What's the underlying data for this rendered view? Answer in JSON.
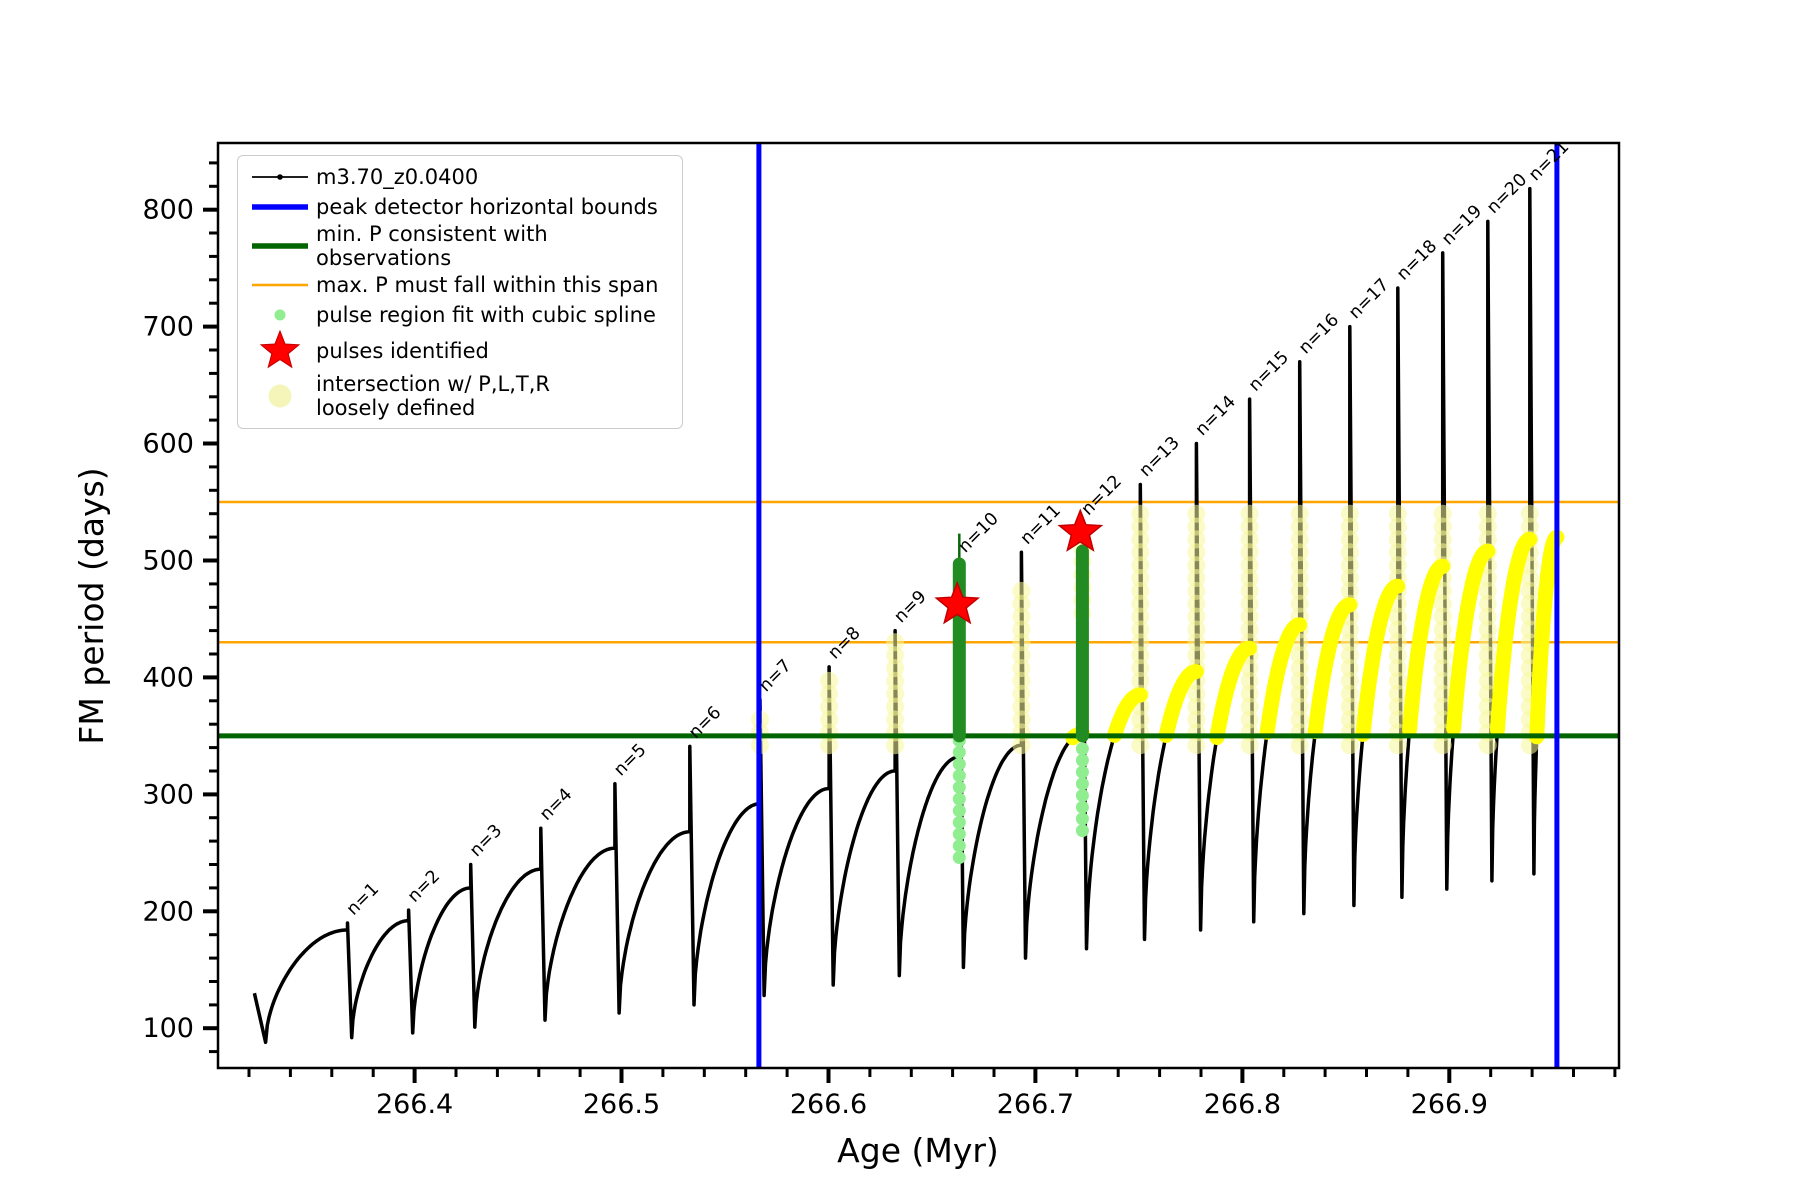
{
  "chart_data": {
    "type": "line",
    "title": "",
    "xlabel": "Age (Myr)",
    "ylabel": "FM period (days)",
    "xlim": [
      266.305,
      266.982
    ],
    "ylim": [
      66,
      857
    ],
    "x_major_ticks": [
      266.4,
      266.5,
      266.6,
      266.7,
      266.8,
      266.9
    ],
    "x_minor_step": 0.02,
    "y_major_ticks": [
      100,
      200,
      300,
      400,
      500,
      600,
      700,
      800
    ],
    "y_minor_step": 20,
    "grid": false,
    "series_label": "m3.70_z0.0400",
    "data_start": {
      "x": 266.3226,
      "v": 130
    },
    "x_first_start": 266.328,
    "cycles": [
      {
        "n": 1,
        "label": "n=1",
        "x_peak": 266.3676,
        "v_min": 88,
        "v_arc": 184,
        "v_peak": 190,
        "yellow_arc": false
      },
      {
        "n": 2,
        "label": "n=2",
        "x_peak": 266.3971,
        "v_min": 92,
        "v_arc": 192,
        "v_peak": 201,
        "yellow_arc": false
      },
      {
        "n": 3,
        "label": "n=3",
        "x_peak": 266.4271,
        "v_min": 96,
        "v_arc": 220,
        "v_peak": 240,
        "yellow_arc": false
      },
      {
        "n": 4,
        "label": "n=4",
        "x_peak": 266.461,
        "v_min": 101,
        "v_arc": 236,
        "v_peak": 271,
        "yellow_arc": false
      },
      {
        "n": 5,
        "label": "n=5",
        "x_peak": 266.4968,
        "v_min": 107,
        "v_arc": 254,
        "v_peak": 309,
        "yellow_arc": false
      },
      {
        "n": 6,
        "label": "n=6",
        "x_peak": 266.533,
        "v_min": 113,
        "v_arc": 268,
        "v_peak": 341,
        "yellow_arc": false
      },
      {
        "n": 7,
        "label": "n=7",
        "x_peak": 266.5669,
        "v_min": 120,
        "v_arc": 292,
        "v_peak": 381,
        "yellow_arc": false
      },
      {
        "n": 8,
        "label": "n=8",
        "x_peak": 266.6003,
        "v_min": 128,
        "v_arc": 305,
        "v_peak": 409,
        "yellow_arc": false
      },
      {
        "n": 9,
        "label": "n=9",
        "x_peak": 266.6322,
        "v_min": 137,
        "v_arc": 320,
        "v_peak": 440,
        "yellow_arc": false
      },
      {
        "n": 10,
        "label": "n=10",
        "x_peak": 266.6632,
        "v_min": 145,
        "v_arc": 332,
        "v_peak": 500,
        "yellow_arc": false
      },
      {
        "n": 11,
        "label": "n=11",
        "x_peak": 266.6932,
        "v_min": 152,
        "v_arc": 342,
        "v_peak": 507,
        "yellow_arc": false
      },
      {
        "n": 12,
        "label": "n=12",
        "x_peak": 266.7227,
        "v_min": 160,
        "v_arc": 352,
        "v_peak": 532,
        "yellow_arc": true
      },
      {
        "n": 13,
        "label": "n=13",
        "x_peak": 266.7507,
        "v_min": 168,
        "v_arc": 385,
        "v_peak": 565,
        "yellow_arc": true
      },
      {
        "n": 14,
        "label": "n=14",
        "x_peak": 266.7778,
        "v_min": 176,
        "v_arc": 405,
        "v_peak": 600,
        "yellow_arc": true
      },
      {
        "n": 15,
        "label": "n=15",
        "x_peak": 266.8035,
        "v_min": 184,
        "v_arc": 425,
        "v_peak": 638,
        "yellow_arc": true
      },
      {
        "n": 16,
        "label": "n=16",
        "x_peak": 266.8277,
        "v_min": 191,
        "v_arc": 445,
        "v_peak": 670,
        "yellow_arc": true
      },
      {
        "n": 17,
        "label": "n=17",
        "x_peak": 266.8519,
        "v_min": 198,
        "v_arc": 462,
        "v_peak": 700,
        "yellow_arc": true
      },
      {
        "n": 18,
        "label": "n=18",
        "x_peak": 266.8751,
        "v_min": 205,
        "v_arc": 478,
        "v_peak": 733,
        "yellow_arc": true
      },
      {
        "n": 19,
        "label": "n=19",
        "x_peak": 266.8968,
        "v_min": 212,
        "v_arc": 495,
        "v_peak": 763,
        "yellow_arc": true
      },
      {
        "n": 20,
        "label": "n=20",
        "x_peak": 266.9186,
        "v_min": 219,
        "v_arc": 508,
        "v_peak": 790,
        "yellow_arc": true
      },
      {
        "n": 21,
        "label": "n=21",
        "x_peak": 266.9389,
        "v_min": 226,
        "v_arc": 518,
        "v_peak": 818,
        "yellow_arc": true
      }
    ],
    "partial_cycle": {
      "x_end": 266.952,
      "v_min": 232,
      "v_arc": 520,
      "yellow_arc": true
    },
    "blue_vlines": [
      266.5664,
      266.952
    ],
    "green_hline": 350,
    "orange_hlines": [
      430,
      550
    ],
    "yellow_columns": [
      {
        "x": 266.5669,
        "v1": 342,
        "v2": 374
      },
      {
        "x": 266.6003,
        "v1": 342,
        "v2": 405
      },
      {
        "x": 266.6322,
        "v1": 342,
        "v2": 436
      },
      {
        "x": 266.6932,
        "v1": 342,
        "v2": 480
      },
      {
        "x": 266.7227,
        "v1": 455,
        "v2": 525
      },
      {
        "x": 266.7507,
        "v1": 342,
        "v2": 548
      },
      {
        "x": 266.7778,
        "v1": 342,
        "v2": 548
      },
      {
        "x": 266.8035,
        "v1": 342,
        "v2": 548
      },
      {
        "x": 266.8277,
        "v1": 342,
        "v2": 548
      },
      {
        "x": 266.8519,
        "v1": 342,
        "v2": 548
      },
      {
        "x": 266.8751,
        "v1": 342,
        "v2": 548
      },
      {
        "x": 266.8968,
        "v1": 342,
        "v2": 548
      },
      {
        "x": 266.9186,
        "v1": 342,
        "v2": 548
      },
      {
        "x": 266.9389,
        "v1": 342,
        "v2": 548
      }
    ],
    "green_clusters": [
      {
        "x": 266.6632,
        "v1": 350,
        "v2": 497,
        "spline_top": 523,
        "dots_v1": 246,
        "dots_v2": 348
      },
      {
        "x": 266.7227,
        "v1": 350,
        "v2": 508,
        "spline_top": null,
        "dots_v1": 269,
        "dots_v2": 348
      }
    ],
    "stars": [
      {
        "x": 266.6622,
        "v": 462
      },
      {
        "x": 266.7217,
        "v": 524
      }
    ]
  },
  "colors": {
    "line": "#000000",
    "blue": "#0000ff",
    "darkgreen": "#006400",
    "cluster_green": "#228B22",
    "spline_green": "#0a6a0a",
    "light_green": "#90EE90",
    "orange": "#FFA500",
    "yellow": "#FFFF00",
    "pale_yellow": "rgba(247,247,154,0.55)",
    "pale_yellow_solid": "#f5f5b0",
    "red": "#FF0000"
  },
  "legend": {
    "items": [
      {
        "label": "m3.70_z0.0400",
        "marker": "line-dot",
        "color": "#000000"
      },
      {
        "label": "peak detector horizontal bounds",
        "marker": "thickline",
        "color": "#0000ff"
      },
      {
        "label": "min. P consistent with observations",
        "marker": "thickline",
        "color": "#006400"
      },
      {
        "label": "max. P must fall within this span",
        "marker": "line",
        "color": "#FFA500"
      },
      {
        "label": "pulse region fit with cubic spline",
        "marker": "dot",
        "color": "#90EE90"
      },
      {
        "label": "pulses identified",
        "marker": "star",
        "color": "#FF0000"
      },
      {
        "label": "intersection w/ P,L,T,R\nloosely defined",
        "marker": "bigdot",
        "color": "#f3f3a8"
      }
    ]
  }
}
